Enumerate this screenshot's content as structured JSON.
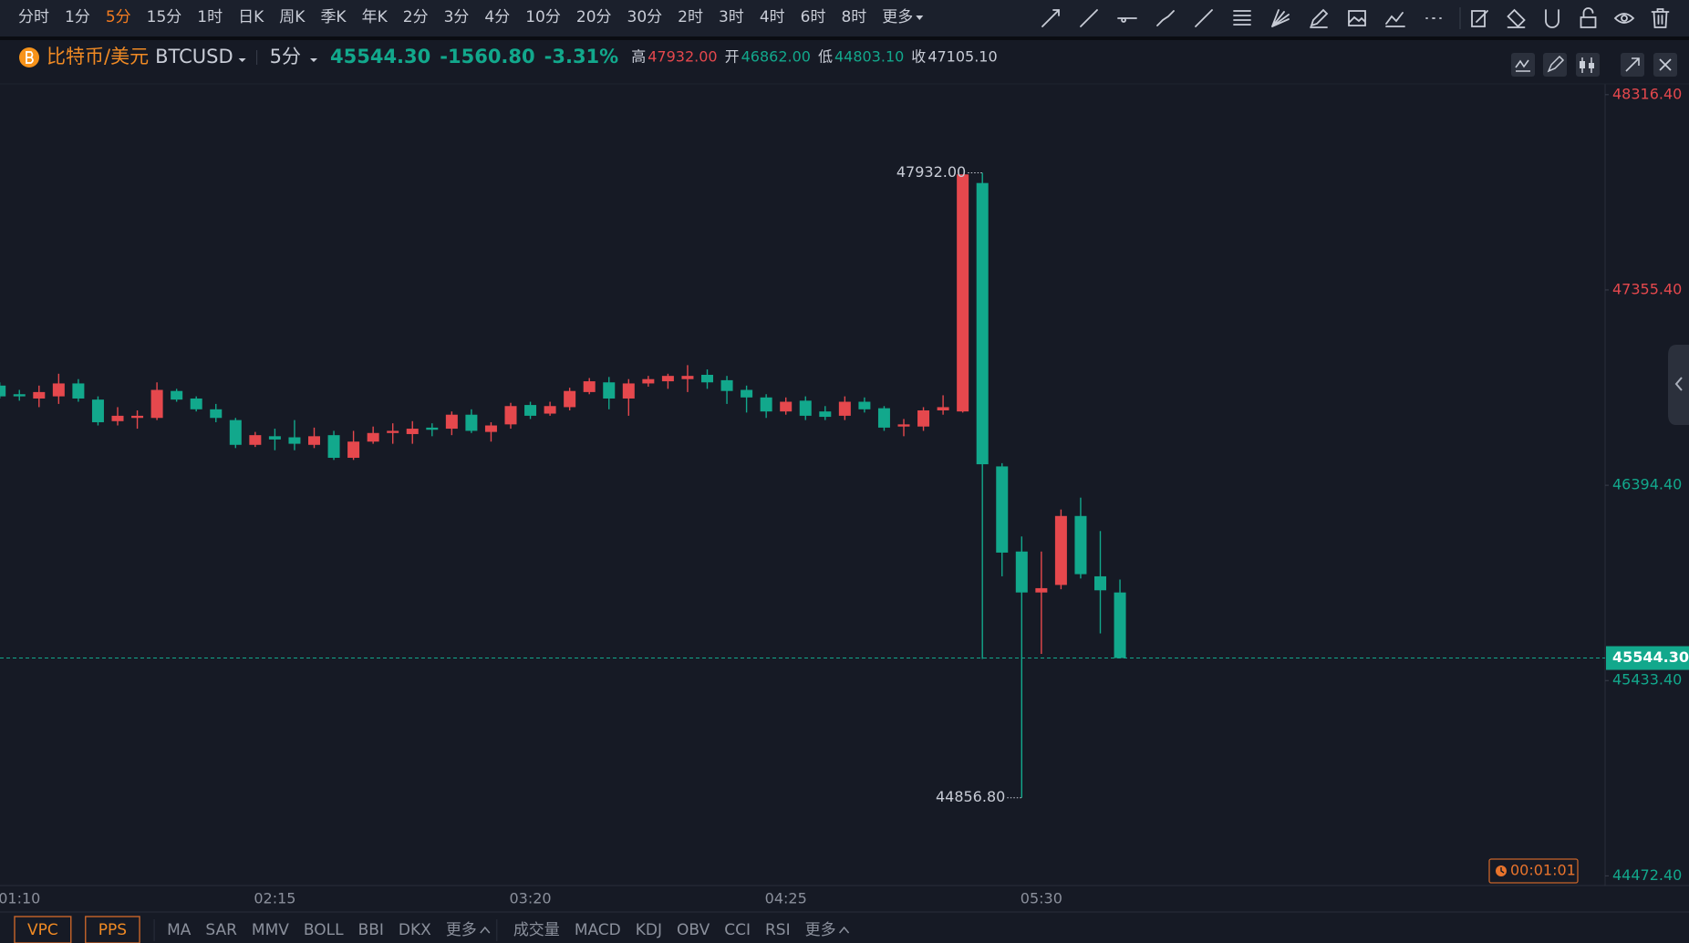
{
  "toolbar": {
    "periods": [
      "分时",
      "1分",
      "5分",
      "15分",
      "1时",
      "日K",
      "周K",
      "季K",
      "年K",
      "2分",
      "3分",
      "4分",
      "10分",
      "20分",
      "30分",
      "2时",
      "3时",
      "4时",
      "6时",
      "8时"
    ],
    "active_index": 2,
    "more": "更多"
  },
  "symbol": {
    "name": "比特币/美元",
    "code": "BTCUSD",
    "period": "5分",
    "price": "45544.30",
    "change": "-1560.80",
    "change_pct": "-3.31%",
    "high_label": "高",
    "high": "47932.00",
    "open_label": "开",
    "open": "46862.00",
    "low_label": "低",
    "low": "44803.10",
    "close_label": "收",
    "close": "47105.10"
  },
  "chart_data": {
    "type": "candlestick",
    "up_color": "#e5484d",
    "down_color": "#12a88c",
    "categories": [
      null,
      "01:10",
      null,
      null,
      null,
      null,
      null,
      null,
      null,
      null,
      null,
      null,
      null,
      null,
      "02:15",
      null,
      null,
      null,
      null,
      null,
      null,
      null,
      null,
      null,
      null,
      null,
      null,
      "03:20",
      null,
      null,
      null,
      null,
      null,
      null,
      null,
      null,
      null,
      null,
      null,
      null,
      "04:25",
      null,
      null,
      null,
      null,
      null,
      null,
      null,
      null,
      null,
      null,
      null,
      null,
      "05:30",
      null,
      null,
      null,
      null
    ],
    "open": [
      46884.9,
      46842.5,
      46821.3,
      46831.9,
      46895.5,
      46816.0,
      46709.9,
      46725.8,
      46725.8,
      46858.4,
      46821.3,
      46768.2,
      46715.2,
      46593.3,
      46635.7,
      46630.4,
      46593.3,
      46641.0,
      46529.6,
      46609.2,
      46651.6,
      46646.3,
      46678.1,
      46672.8,
      46741.7,
      46656.9,
      46694.0,
      46789.4,
      46747.0,
      46778.8,
      46853.1,
      46900.8,
      46821.3,
      46895.5,
      46906.1,
      46916.7,
      46937.9,
      46911.4,
      46863.7,
      46826.6,
      46757.6,
      46810.7,
      46757.6,
      46736.4,
      46805.4,
      46773.5,
      46683.4,
      46683.4,
      46762.9,
      46757.6,
      47881.7,
      46487.2,
      46068.4,
      45866.9,
      45904.0,
      46243.3,
      45946.4,
      45866.9
    ],
    "high": [
      46900.8,
      46863.7,
      46884.9,
      46943.2,
      46916.7,
      46831.9,
      46778.8,
      46762.9,
      46900.8,
      46869.0,
      46831.9,
      46794.7,
      46725.8,
      46656.9,
      46672.8,
      46715.2,
      46678.1,
      46662.2,
      46662.2,
      46683.4,
      46699.3,
      46709.9,
      46699.3,
      46757.6,
      46768.2,
      46704.6,
      46800.1,
      46805.4,
      46805.4,
      46874.3,
      46922.0,
      46927.3,
      46916.7,
      46932.6,
      46943.2,
      46985.6,
      46964.4,
      46932.6,
      46884.9,
      46842.5,
      46826.6,
      46831.9,
      46784.1,
      46831.9,
      46826.6,
      46784.1,
      46720.5,
      46778.8,
      46837.2,
      47924.1,
      47932.0,
      46503.1,
      46142.6,
      46068.4,
      46275.2,
      46333.5,
      46169.1,
      45930.5
    ],
    "low": [
      46821.3,
      46810.7,
      46778.8,
      46794.7,
      46805.4,
      46688.7,
      46688.7,
      46672.8,
      46715.2,
      46805.4,
      46757.6,
      46704.6,
      46577.4,
      46582.7,
      46566.8,
      46566.8,
      46577.4,
      46519.1,
      46519.1,
      46598.6,
      46598.6,
      46598.6,
      46635.7,
      46641.0,
      46651.6,
      46609.2,
      46672.8,
      46720.5,
      46736.4,
      46762.9,
      46842.5,
      46768.2,
      46736.4,
      46879.6,
      46869.0,
      46853.1,
      46869.0,
      46794.7,
      46752.3,
      46725.8,
      46741.7,
      46715.2,
      46715.2,
      46715.2,
      46752.3,
      46662.2,
      46635.7,
      46662.2,
      46741.7,
      46752.3,
      45540.0,
      45946.4,
      44856.8,
      45564.7,
      45882.8,
      45935.8,
      45665.4,
      45544.3
    ],
    "close": [
      46831.9,
      46831.9,
      46853.1,
      46895.5,
      46821.3,
      46704.6,
      46736.4,
      46736.4,
      46863.7,
      46816.0,
      46768.2,
      46725.8,
      46593.3,
      46641.0,
      46619.8,
      46598.6,
      46635.7,
      46529.6,
      46609.2,
      46651.6,
      46662.2,
      46672.8,
      46667.5,
      46741.7,
      46662.2,
      46688.7,
      46784.1,
      46736.4,
      46784.1,
      46858.4,
      46906.1,
      46821.3,
      46895.5,
      46916.7,
      46932.6,
      46932.6,
      46900.8,
      46858.4,
      46826.6,
      46757.6,
      46805.4,
      46736.4,
      46731.1,
      46805.4,
      46768.2,
      46678.1,
      46694.0,
      46762.9,
      46778.8,
      47924.1,
      46497.8,
      46063.1,
      45866.9,
      45888.1,
      46243.3,
      45957.0,
      45877.5,
      45544.3
    ],
    "ylim": [
      44424.8,
      48369.4
    ],
    "yticks": [
      {
        "value": 48316.4,
        "label": "48316.40"
      },
      {
        "value": 47355.4,
        "label": "47355.40"
      },
      {
        "value": 46394.4,
        "label": "46394.40"
      },
      {
        "value": 45433.4,
        "label": "45433.40"
      },
      {
        "value": 44472.4,
        "label": "44472.40"
      }
    ],
    "last_price": {
      "value": 45544.3,
      "label": "45544.30"
    },
    "annotations": [
      {
        "text": "47932.00",
        "value": 47932.0
      },
      {
        "text": "44856.80",
        "value": 44856.8
      }
    ]
  },
  "countdown": "00:01:01",
  "indicators": {
    "boxed": [
      "VPC",
      "PPS"
    ],
    "main": [
      "MA",
      "SAR",
      "MMV",
      "BOLL",
      "BBI",
      "DKX"
    ],
    "main_more": "更多",
    "sub": [
      "成交量",
      "MACD",
      "KDJ",
      "OBV",
      "CCI",
      "RSI"
    ],
    "sub_more": "更多"
  }
}
